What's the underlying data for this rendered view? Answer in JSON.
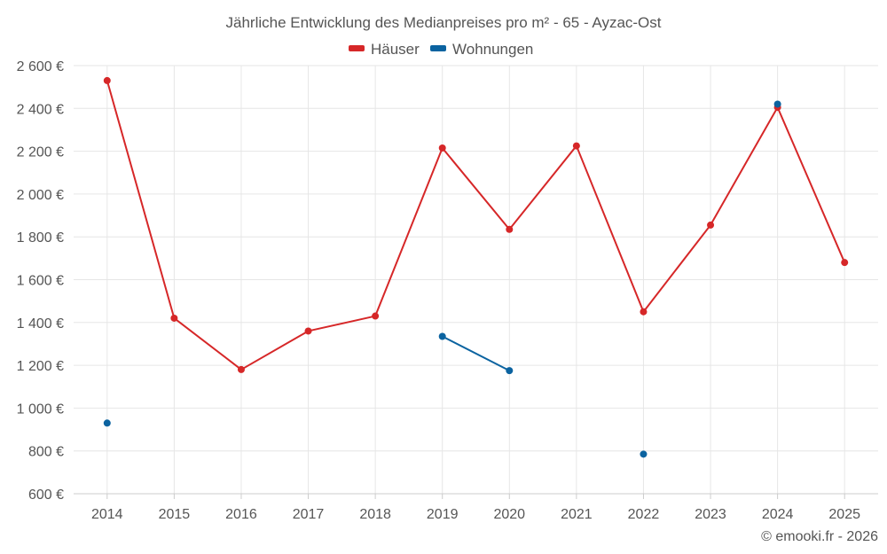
{
  "chart_data": {
    "type": "line",
    "title": "Jährliche Entwicklung des Medianpreises pro m² - 65 - Ayzac-Ost",
    "categories": [
      "2014",
      "2015",
      "2016",
      "2017",
      "2018",
      "2019",
      "2020",
      "2021",
      "2022",
      "2023",
      "2024",
      "2025"
    ],
    "series": [
      {
        "name": "Häuser",
        "color": "#d62728",
        "values": [
          2530,
          1420,
          1180,
          1360,
          1430,
          2215,
          1835,
          2225,
          1450,
          1855,
          2405,
          1680
        ]
      },
      {
        "name": "Wohnungen",
        "color": "#0b63a0",
        "values": [
          930,
          null,
          null,
          null,
          null,
          1335,
          1175,
          null,
          785,
          null,
          2420,
          null
        ]
      }
    ],
    "ylim": [
      600,
      2600
    ],
    "yticks": [
      600,
      800,
      1000,
      1200,
      1400,
      1600,
      1800,
      2000,
      2200,
      2400,
      2600
    ],
    "ytick_labels": [
      "600 €",
      "800 €",
      "1 000 €",
      "1 200 €",
      "1 400 €",
      "1 600 €",
      "1 800 €",
      "2 000 €",
      "2 200 €",
      "2 400 €",
      "2 600 €"
    ],
    "grid": true,
    "legend_position": "top-center",
    "xlabel": "",
    "ylabel": ""
  },
  "credit": "© emooki.fr - 2026"
}
